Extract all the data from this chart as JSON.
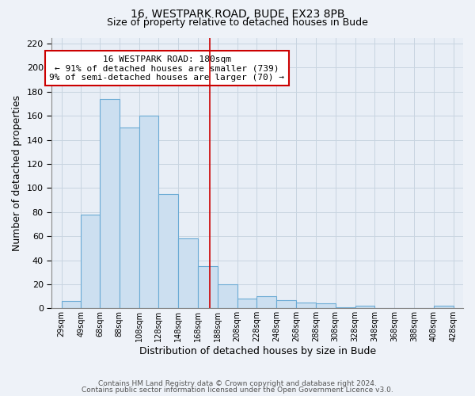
{
  "title": "16, WESTPARK ROAD, BUDE, EX23 8PB",
  "subtitle": "Size of property relative to detached houses in Bude",
  "xlabel": "Distribution of detached houses by size in Bude",
  "ylabel": "Number of detached properties",
  "heights": [
    6,
    78,
    174,
    150,
    160,
    95,
    58,
    35,
    20,
    8,
    10,
    7,
    5,
    4,
    1,
    2,
    0,
    0,
    0,
    2
  ],
  "bin_labels": [
    "29sqm",
    "49sqm",
    "68sqm",
    "88sqm",
    "108sqm",
    "128sqm",
    "148sqm",
    "168sqm",
    "188sqm",
    "208sqm",
    "228sqm",
    "248sqm",
    "268sqm",
    "288sqm",
    "308sqm",
    "328sqm",
    "348sqm",
    "368sqm",
    "388sqm",
    "408sqm",
    "428sqm"
  ],
  "bar_color": "#ccdff0",
  "bar_edge_color": "#6aaad4",
  "ylim": [
    0,
    225
  ],
  "yticks": [
    0,
    20,
    40,
    60,
    80,
    100,
    120,
    140,
    160,
    180,
    200,
    220
  ],
  "vline_x": 180,
  "vline_color": "#cc0000",
  "annotation_title": "16 WESTPARK ROAD: 180sqm",
  "annotation_line1": "← 91% of detached houses are smaller (739)",
  "annotation_line2": "9% of semi-detached houses are larger (70) →",
  "footer1": "Contains HM Land Registry data © Crown copyright and database right 2024.",
  "footer2": "Contains public sector information licensed under the Open Government Licence v3.0.",
  "grid_color": "#c8d4e0",
  "bg_color": "#eef2f8",
  "plot_bg_color": "#e8eef6"
}
